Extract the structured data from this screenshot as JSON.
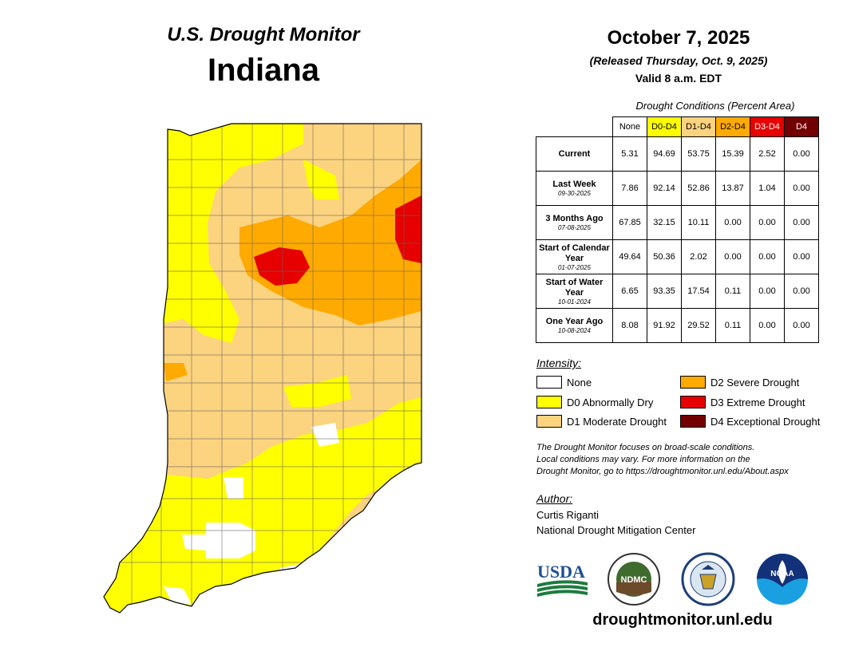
{
  "header": {
    "subtitle": "U.S. Drought Monitor",
    "state": "Indiana",
    "date": "October 7, 2025",
    "released": "(Released Thursday, Oct. 9, 2025)",
    "valid": "Valid 8 a.m. EDT"
  },
  "table": {
    "title": "Drought Conditions (Percent Area)",
    "columns": [
      "None",
      "D0-D4",
      "D1-D4",
      "D2-D4",
      "D3-D4",
      "D4"
    ],
    "column_colors": [
      "#ffffff",
      "#ffff00",
      "#fcd37f",
      "#ffaa00",
      "#e60000",
      "#730000"
    ],
    "rows": [
      {
        "label": "Current",
        "sublabel": "",
        "values": [
          "5.31",
          "94.69",
          "53.75",
          "15.39",
          "2.52",
          "0.00"
        ]
      },
      {
        "label": "Last Week",
        "sublabel": "09-30-2025",
        "values": [
          "7.86",
          "92.14",
          "52.86",
          "13.87",
          "1.04",
          "0.00"
        ]
      },
      {
        "label": "3 Months Ago",
        "sublabel": "07-08-2025",
        "values": [
          "67.85",
          "32.15",
          "10.11",
          "0.00",
          "0.00",
          "0.00"
        ]
      },
      {
        "label": "Start of Calendar Year",
        "sublabel": "01-07-2025",
        "values": [
          "49.64",
          "50.36",
          "2.02",
          "0.00",
          "0.00",
          "0.00"
        ]
      },
      {
        "label": "Start of Water Year",
        "sublabel": "10-01-2024",
        "values": [
          "6.65",
          "93.35",
          "17.54",
          "0.11",
          "0.00",
          "0.00"
        ]
      },
      {
        "label": "One Year Ago",
        "sublabel": "10-08-2024",
        "values": [
          "8.08",
          "91.92",
          "29.52",
          "0.11",
          "0.00",
          "0.00"
        ]
      }
    ]
  },
  "legend": {
    "title": "Intensity:",
    "items": [
      {
        "label": "None",
        "color": "#ffffff"
      },
      {
        "label": "D0 Abnormally Dry",
        "color": "#ffff00"
      },
      {
        "label": "D1 Moderate Drought",
        "color": "#fcd37f"
      },
      {
        "label": "D2 Severe Drought",
        "color": "#ffaa00"
      },
      {
        "label": "D3 Extreme Drought",
        "color": "#e60000"
      },
      {
        "label": "D4 Exceptional Drought",
        "color": "#730000"
      }
    ]
  },
  "note": {
    "line1": "The Drought Monitor focuses on broad-scale conditions.",
    "line2": "Local conditions may vary. For more information on the",
    "line3": "Drought Monitor, go to https://droughtmonitor.unl.edu/About.aspx"
  },
  "author": {
    "title": "Author:",
    "name": "Curtis Riganti",
    "org": "National Drought Mitigation Center"
  },
  "logos": {
    "usda": "USDA",
    "ndmc": "NDMC",
    "noaa": "NOAA"
  },
  "footer": {
    "site": "droughtmonitor.unl.edu"
  }
}
